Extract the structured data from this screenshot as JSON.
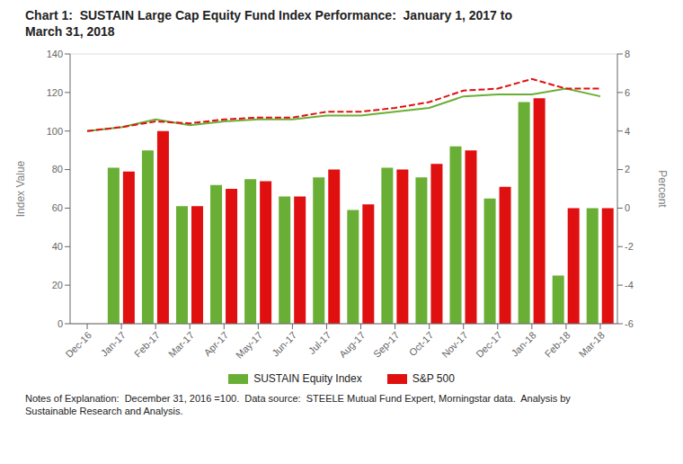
{
  "chart_data": {
    "type": "bar",
    "title": "Chart 1:  SUSTAIN Large Cap Equity Fund Index Performance:  January 1, 2017 to\nMarch 31, 2018",
    "ylabel": "Index Value",
    "y2label": "Percent",
    "annotations": [
      "Notes of Explanation:  December 31, 2016 =100.  Data source:  STEELE Mutual Fund Expert, Morningstar data.  Analysis by\nSustainable Research and Analysis."
    ],
    "categories": [
      "Dec-16",
      "Jan-17",
      "Feb-17",
      "Mar-17",
      "Apr-17",
      "May-17",
      "Jun-17",
      "Jul-17",
      "Aug-17",
      "Sep-17",
      "Oct-17",
      "Nov-17",
      "Dec-17",
      "Jan-18",
      "Feb-18",
      "Mar-18"
    ],
    "series": [
      {
        "name": "SUSTAIN Equity Index",
        "type": "bar",
        "color": "#6aaf35",
        "values": [
          null,
          81,
          90,
          61,
          72,
          75,
          66,
          76,
          59,
          81,
          76,
          92,
          65,
          115,
          25,
          60
        ]
      },
      {
        "name": "S&P 500",
        "type": "bar",
        "color": "#e01010",
        "values": [
          null,
          79,
          100,
          61,
          70,
          74,
          66,
          80,
          62,
          80,
          83,
          90,
          71,
          117,
          60,
          60
        ]
      },
      {
        "name": "SUSTAIN Equity Index",
        "type": "line",
        "color": "#6aaf35",
        "line_style": "solid",
        "values": [
          100,
          102,
          106,
          103,
          105,
          106,
          106,
          108,
          108,
          110,
          112,
          118,
          119,
          119,
          122,
          118
        ]
      },
      {
        "name": "S&P 500",
        "type": "line",
        "color": "#e01010",
        "line_style": "dashed",
        "values": [
          100,
          102,
          105,
          104,
          106,
          107,
          107,
          110,
          110,
          112,
          115,
          121,
          122,
          127,
          122,
          122
        ]
      }
    ],
    "ylim": [
      0,
      140
    ],
    "yticks": [
      0,
      20,
      40,
      60,
      80,
      100,
      120,
      140
    ],
    "y2lim": [
      -6,
      8
    ],
    "y2ticks": [
      -6,
      -4,
      -2,
      0,
      2,
      4,
      6,
      8
    ],
    "grid": true,
    "legend": "bottom"
  }
}
